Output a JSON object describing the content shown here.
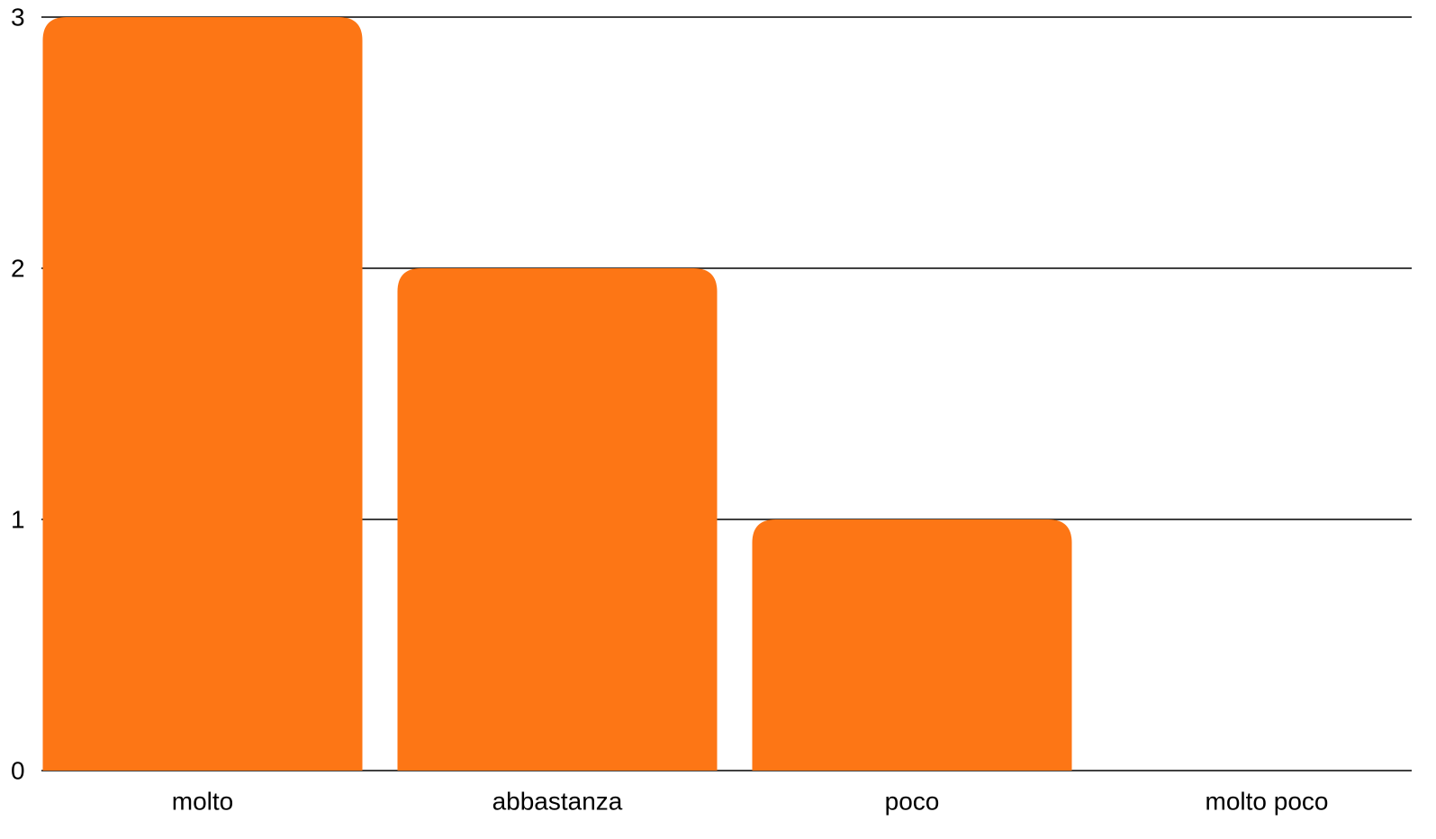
{
  "chart_data": {
    "type": "bar",
    "categories": [
      "molto",
      "abbastanza",
      "poco",
      "molto poco"
    ],
    "values": [
      3,
      2,
      1,
      0
    ],
    "color": "#fd7615",
    "ylim": [
      0,
      3
    ],
    "yticks": [
      0,
      1,
      2,
      3
    ],
    "grid": true
  }
}
